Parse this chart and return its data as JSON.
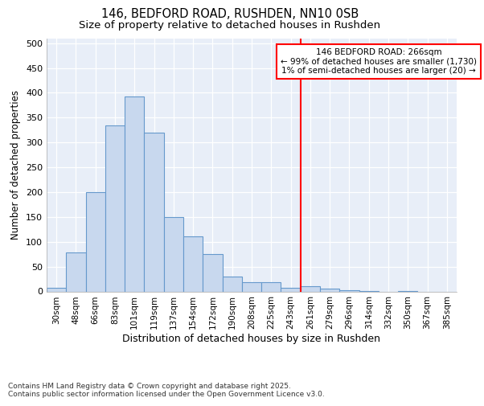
{
  "title1": "146, BEDFORD ROAD, RUSHDEN, NN10 0SB",
  "title2": "Size of property relative to detached houses in Rushden",
  "xlabel": "Distribution of detached houses by size in Rushden",
  "ylabel": "Number of detached properties",
  "categories": [
    "30sqm",
    "48sqm",
    "66sqm",
    "83sqm",
    "101sqm",
    "119sqm",
    "137sqm",
    "154sqm",
    "172sqm",
    "190sqm",
    "208sqm",
    "225sqm",
    "243sqm",
    "261sqm",
    "279sqm",
    "296sqm",
    "314sqm",
    "332sqm",
    "350sqm",
    "367sqm",
    "385sqm"
  ],
  "values": [
    8,
    78,
    200,
    335,
    393,
    320,
    150,
    111,
    75,
    30,
    18,
    18,
    8,
    10,
    5,
    3,
    1,
    0,
    1,
    0,
    0
  ],
  "bar_color": "#c8d8ee",
  "bar_edge_color": "#6699cc",
  "vline_color": "red",
  "annotation_title": "146 BEDFORD ROAD: 266sqm",
  "annotation_line1": "← 99% of detached houses are smaller (1,730)",
  "annotation_line2": "1% of semi-detached houses are larger (20) →",
  "annotation_box_color": "red",
  "ylim": [
    0,
    510
  ],
  "yticks": [
    0,
    50,
    100,
    150,
    200,
    250,
    300,
    350,
    400,
    450,
    500
  ],
  "background_color": "#e8eef8",
  "footer": "Contains HM Land Registry data © Crown copyright and database right 2025.\nContains public sector information licensed under the Open Government Licence v3.0.",
  "title_fontsize": 10.5,
  "subtitle_fontsize": 9.5,
  "bar_width": 1.0
}
